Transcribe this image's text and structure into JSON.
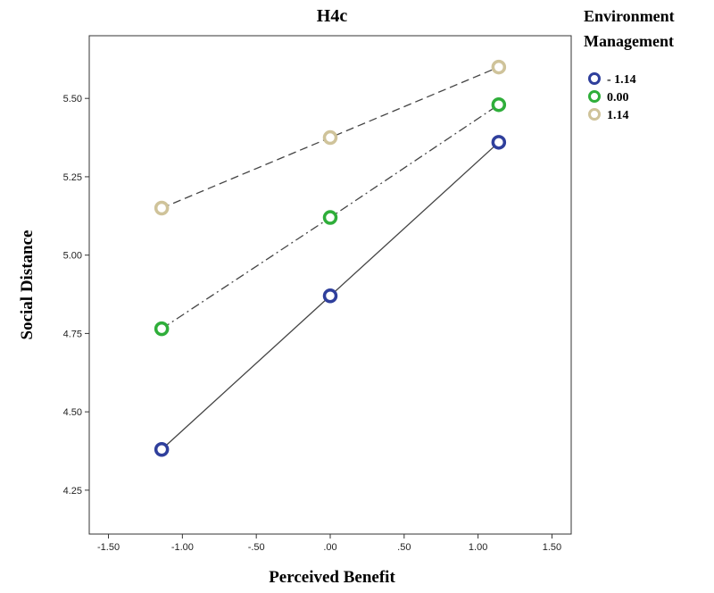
{
  "chart_data": {
    "type": "line",
    "title": "H4c",
    "x_label": "Perceived Benefit",
    "y_label": "Social Distance",
    "legend_title": [
      "Environment",
      "Management"
    ],
    "legend_position": "right",
    "x": [
      -1.14,
      0,
      1.14
    ],
    "series": [
      {
        "name": "- 1.14",
        "color": "#2f3f9c",
        "line_style": "solid",
        "values": [
          4.38,
          4.87,
          5.36
        ]
      },
      {
        "name": "0.00",
        "color": "#2fae3a",
        "line_style": "dashdot",
        "values": [
          4.765,
          5.12,
          5.48
        ]
      },
      {
        "name": "1.14",
        "color": "#cfc39a",
        "line_style": "dashed",
        "values": [
          5.15,
          5.375,
          5.6
        ]
      }
    ],
    "xlim": [
      -1.63,
      1.63
    ],
    "ylim": [
      4.11,
      5.7
    ],
    "xticks": [
      {
        "value": -1.5,
        "label": "-1.50"
      },
      {
        "value": -1,
        "label": "-1.00"
      },
      {
        "value": -0.5,
        "label": "-.50"
      },
      {
        "value": 0,
        "label": ".00"
      },
      {
        "value": 0.5,
        "label": ".50"
      },
      {
        "value": 1,
        "label": "1.00"
      },
      {
        "value": 1.5,
        "label": "1.50"
      }
    ],
    "yticks": [
      4.25,
      {
        "value": 4.5,
        "label": "4.50"
      },
      4.75,
      {
        "value": 5,
        "label": "5.00"
      },
      5.25,
      {
        "value": 5.5,
        "label": "5.50"
      }
    ]
  }
}
